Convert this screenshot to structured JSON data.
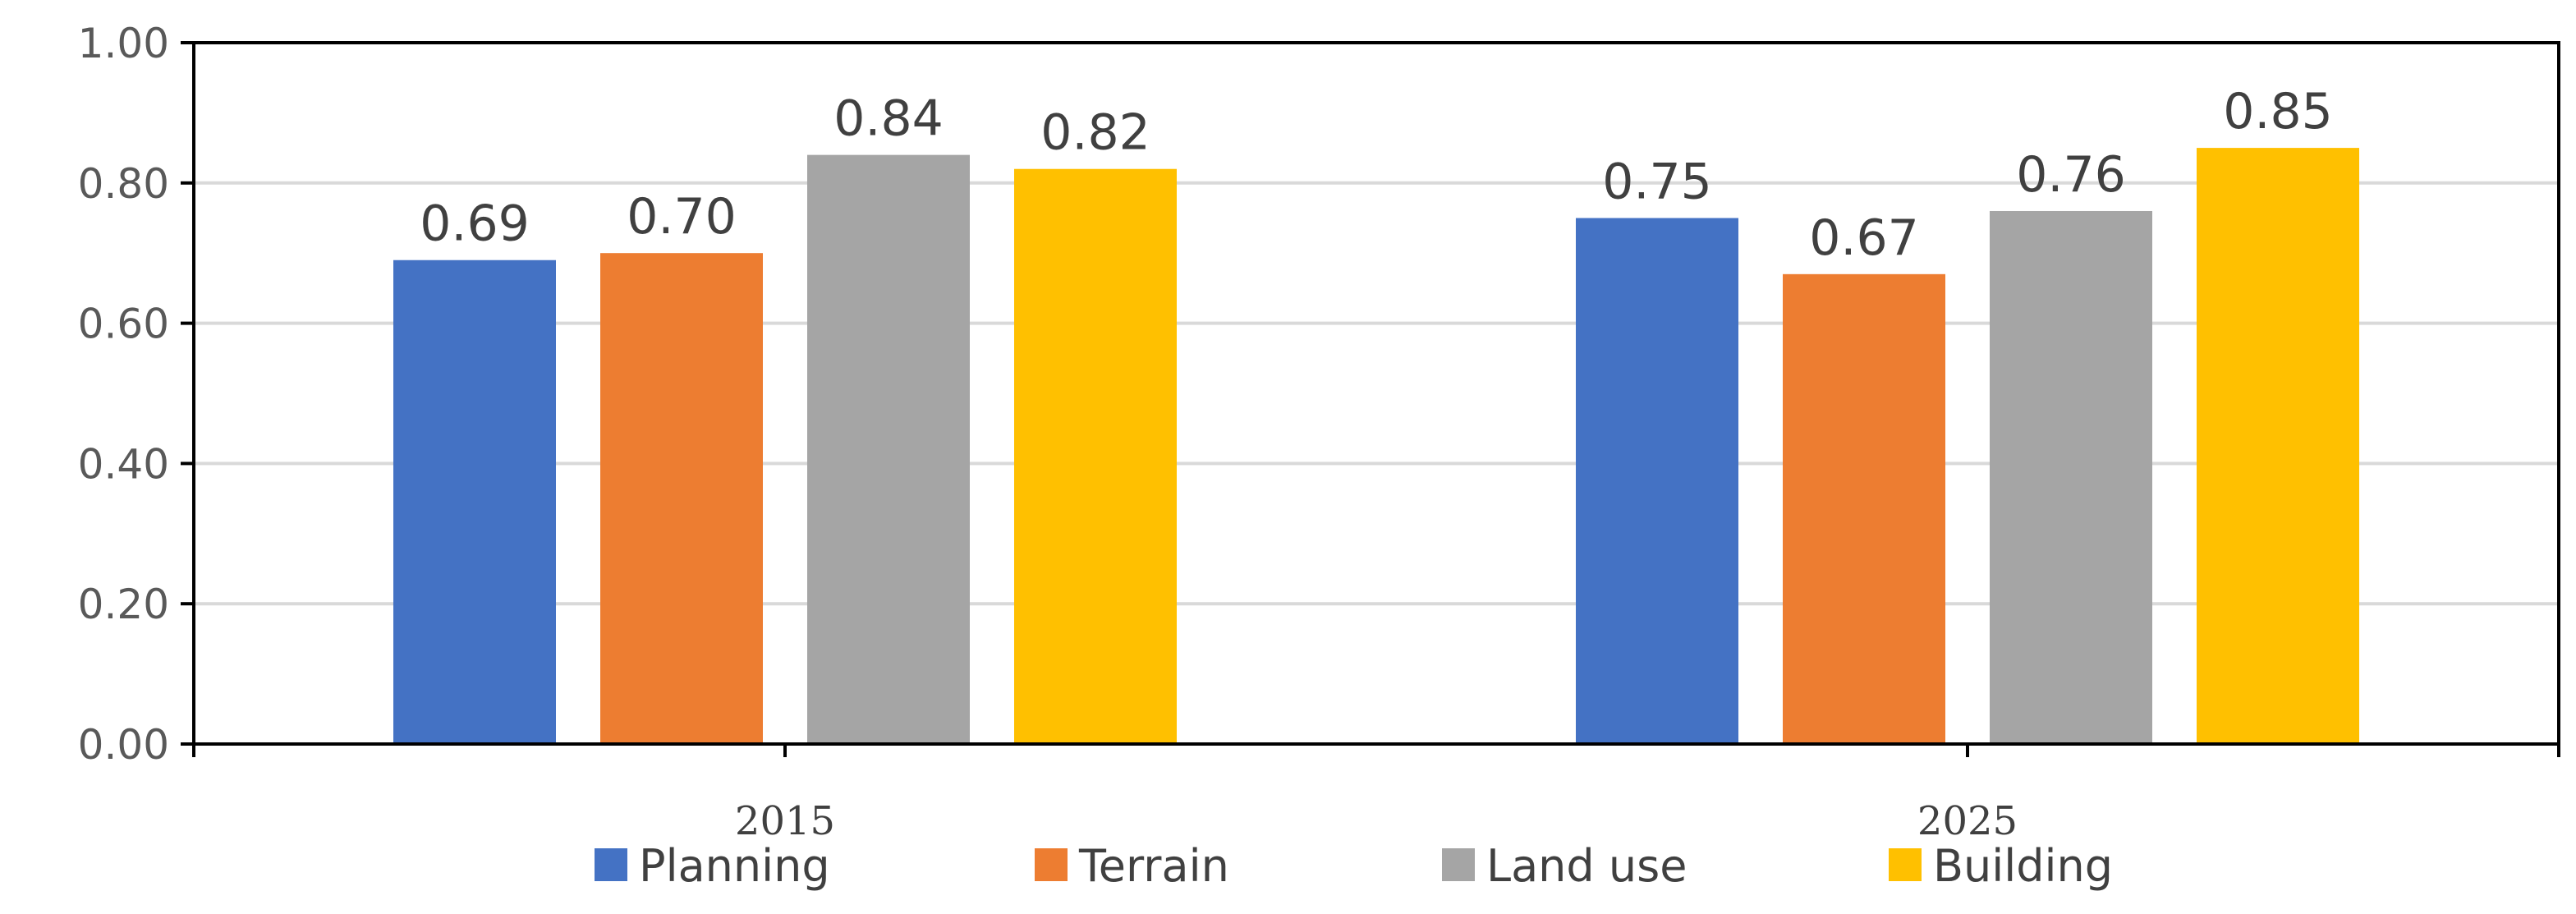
{
  "chart_data": {
    "type": "bar",
    "categories": [
      "2015",
      "2025"
    ],
    "series": [
      {
        "name": "Planning",
        "values": [
          0.69,
          0.75
        ],
        "labels": [
          "0.69",
          "0.75"
        ],
        "color": "#4472C4"
      },
      {
        "name": "Terrain",
        "values": [
          0.7,
          0.67
        ],
        "labels": [
          "0.70",
          "0.67"
        ],
        "color": "#ED7D31"
      },
      {
        "name": "Land use",
        "values": [
          0.84,
          0.76
        ],
        "labels": [
          "0.84",
          "0.76"
        ],
        "color": "#A5A5A5"
      },
      {
        "name": "Building",
        "values": [
          0.82,
          0.85
        ],
        "labels": [
          "0.82",
          "0.85"
        ],
        "color": "#FFC000"
      }
    ],
    "ylim": [
      0,
      1.0
    ],
    "yticks": [
      "0.00",
      "0.20",
      "0.40",
      "0.60",
      "0.80",
      "1.00"
    ],
    "grid": true,
    "legend_position": "bottom",
    "title": "",
    "xlabel": "",
    "ylabel": ""
  }
}
